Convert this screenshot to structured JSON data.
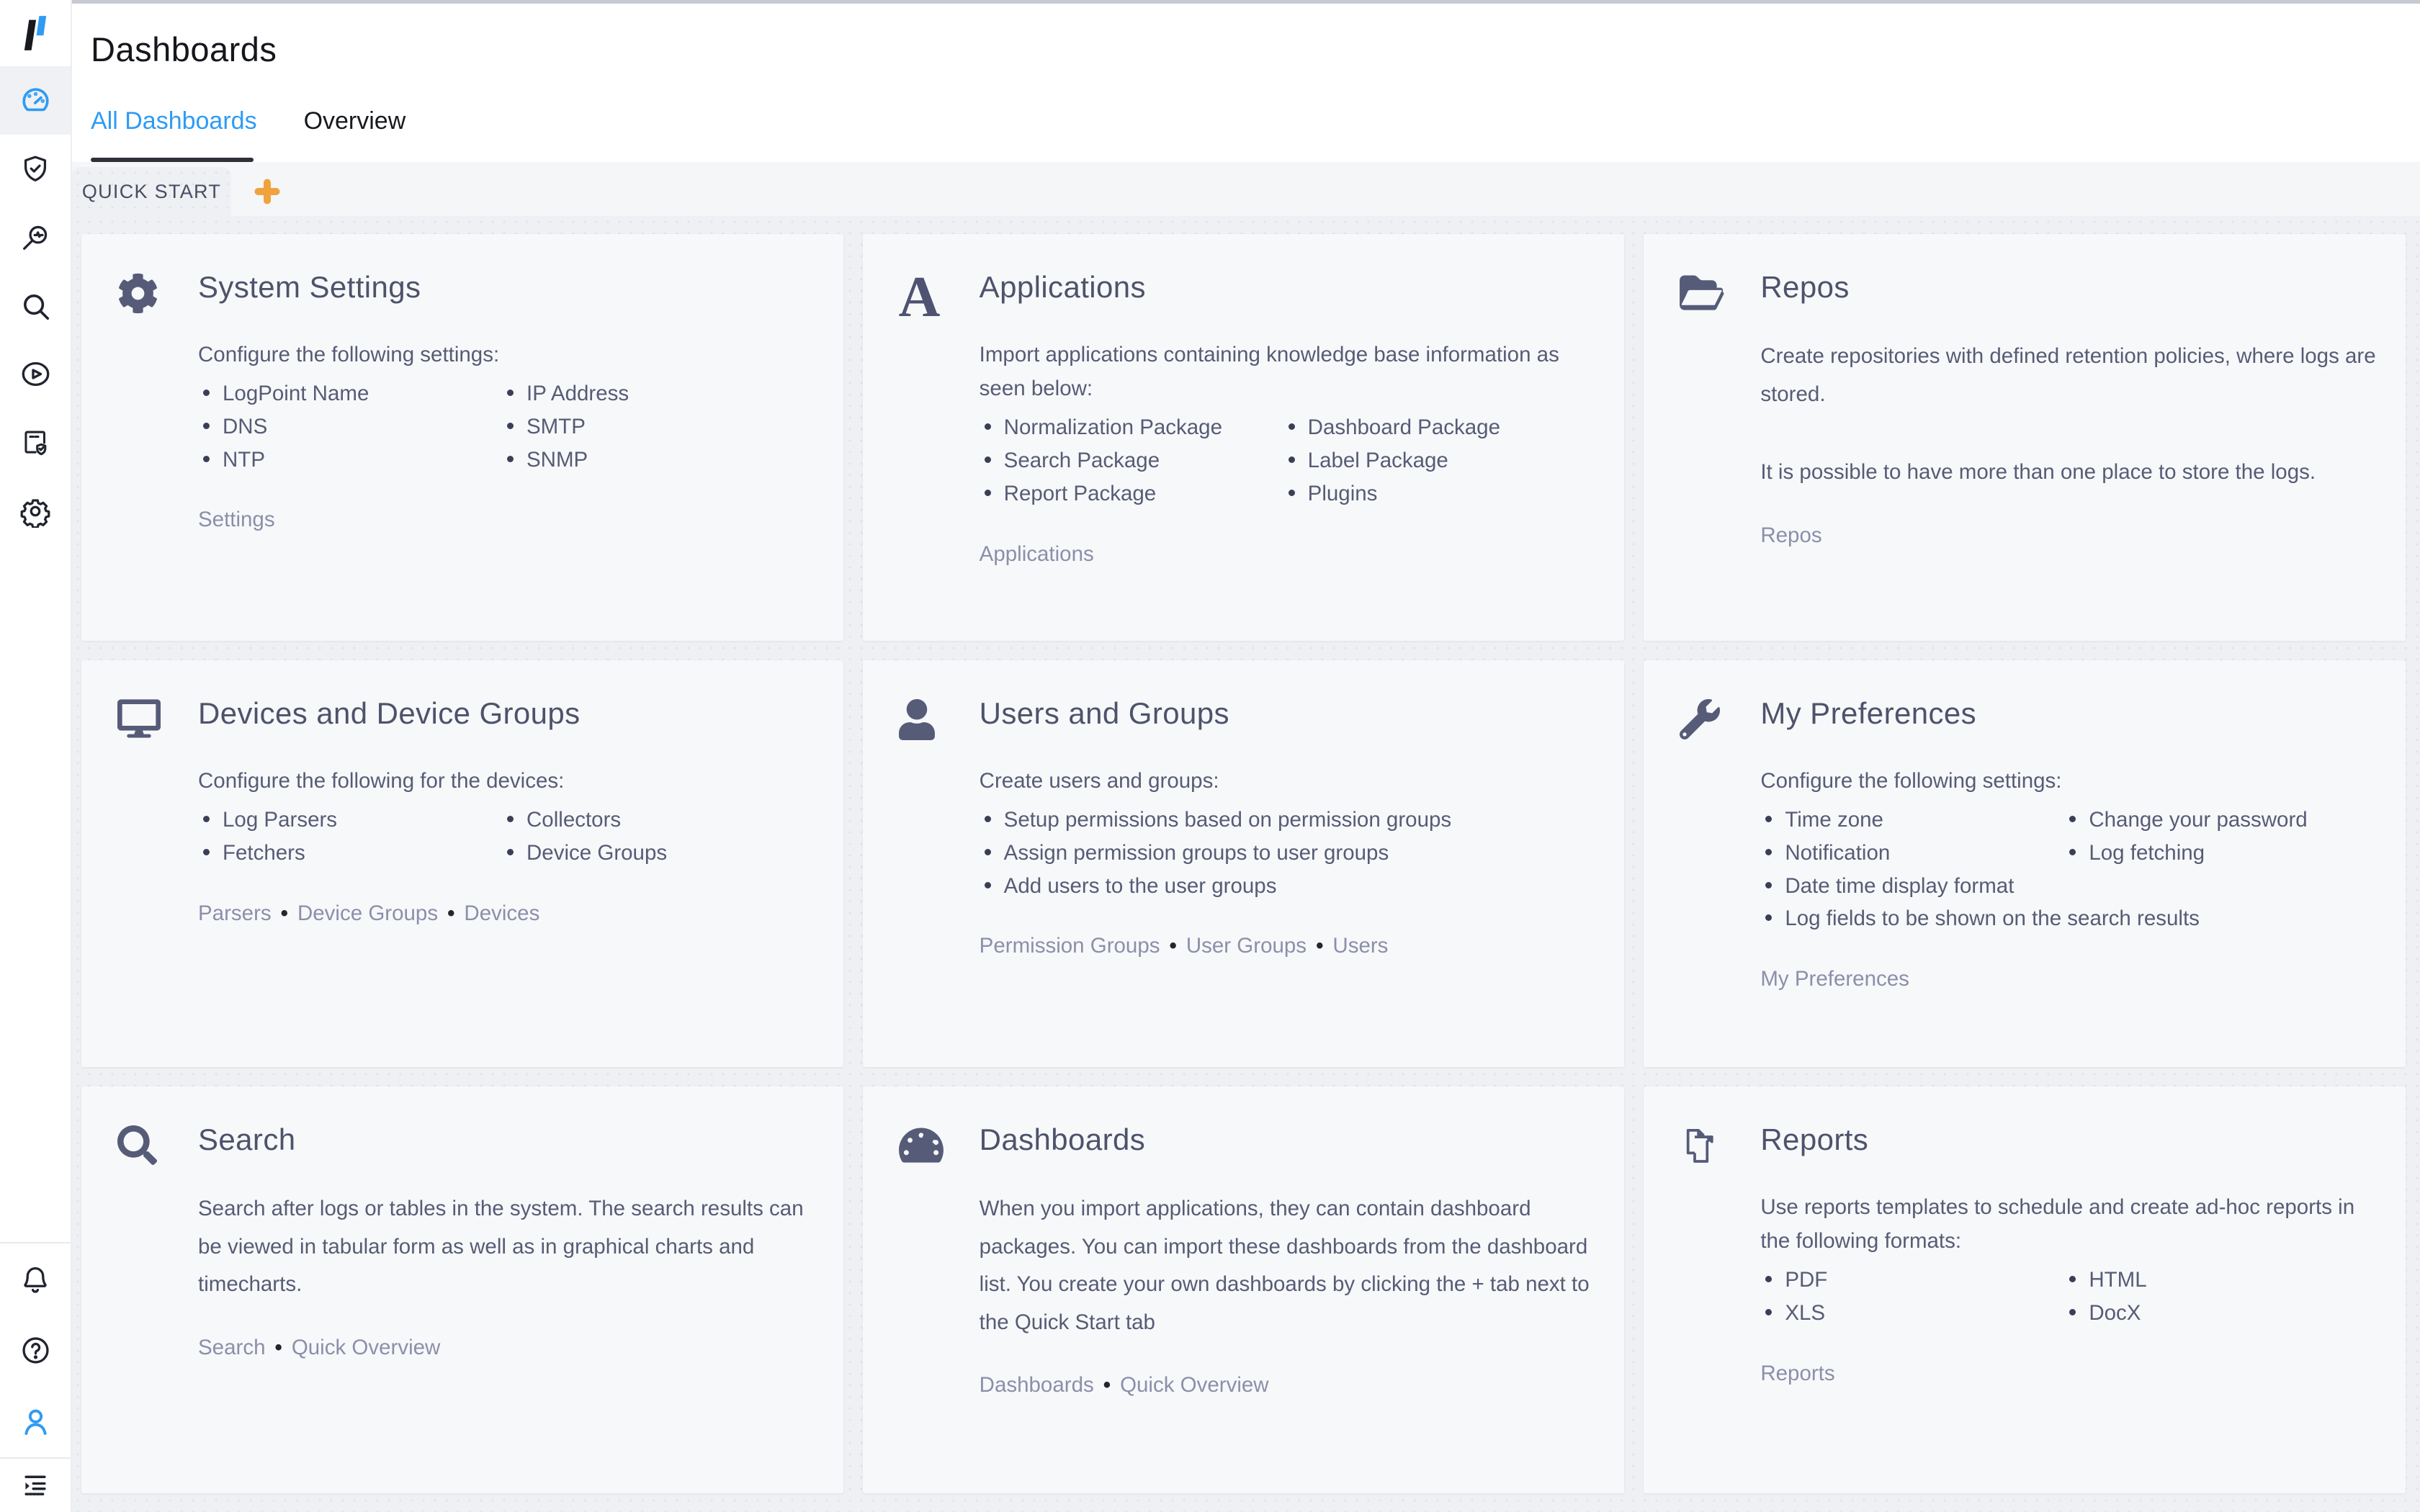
{
  "header": {
    "title": "Dashboards",
    "tabs": [
      {
        "label": "All Dashboards",
        "active": true
      },
      {
        "label": "Overview",
        "active": false
      }
    ]
  },
  "workspace": {
    "active_tab": "QUICK START",
    "add_tab_icon": "plus-icon"
  },
  "sidebar": {
    "top_icons": [
      "dashboard-gauge-icon",
      "shield-check-icon",
      "search-insight-icon",
      "search-icon",
      "play-circle-icon",
      "report-check-icon",
      "gear-outline-icon"
    ],
    "bottom_icons": [
      "bell-icon",
      "help-circle-icon",
      "user-icon",
      "collapse-menu-icon"
    ],
    "active_top_index": 0
  },
  "colors": {
    "accent_blue": "#2f9bf3",
    "plus_orange": "#f0a23c",
    "icon_slate": "#565b78"
  },
  "cards": [
    {
      "icon": "gear-icon",
      "title": "System Settings",
      "intro": "Configure the following settings:",
      "columns": [
        [
          "LogPoint Name",
          "DNS",
          "NTP"
        ],
        [
          "IP Address",
          "SMTP",
          "SNMP"
        ]
      ],
      "links": [
        "Settings"
      ]
    },
    {
      "icon": "letter-a-icon",
      "icon_glyph": "A",
      "title": "Applications",
      "intro": "Import applications containing knowledge base information as seen below:",
      "columns": [
        [
          "Normalization Package",
          "Search Package",
          "Report Package"
        ],
        [
          "Dashboard Package",
          "Label Package",
          "Plugins"
        ]
      ],
      "links": [
        "Applications"
      ]
    },
    {
      "icon": "folder-open-icon",
      "title": "Repos",
      "paragraphs": [
        "Create repositories with defined retention policies, where logs are stored.",
        "It is possible to have more than one place to store the logs."
      ],
      "links": [
        "Repos"
      ]
    },
    {
      "icon": "monitor-icon",
      "title": "Devices and Device Groups",
      "intro": "Configure the following for the devices:",
      "columns": [
        [
          "Log Parsers",
          "Fetchers"
        ],
        [
          "Collectors",
          "Device Groups"
        ]
      ],
      "links": [
        "Parsers",
        "Device Groups",
        "Devices"
      ]
    },
    {
      "icon": "user-solid-icon",
      "title": "Users and Groups",
      "intro": "Create users and groups:",
      "columns": [
        [
          "Setup permissions based on permission groups",
          "Assign permission groups to user groups",
          "Add users to the user groups"
        ]
      ],
      "links": [
        "Permission Groups",
        "User Groups",
        "Users"
      ]
    },
    {
      "icon": "wrench-icon",
      "title": "My Preferences",
      "intro": "Configure the following settings:",
      "columns": [
        [
          "Time zone",
          "Notification",
          "Date time display format",
          "Log fields to be shown on the search results"
        ],
        [
          "Change your password",
          "Log fetching"
        ]
      ],
      "links": [
        "My Preferences"
      ]
    },
    {
      "icon": "magnifier-icon",
      "title": "Search",
      "paragraphs": [
        "Search after logs or tables in the system. The search results can be viewed in tabular form as well as in graphical charts and timecharts."
      ],
      "links": [
        "Search",
        "Quick Overview"
      ]
    },
    {
      "icon": "gauge-icon",
      "title": "Dashboards",
      "paragraphs": [
        "When you import applications, they can contain dashboard packages. You can import these dashboards from the dashboard list. You create your own dashboards by clicking the + tab next to the Quick Start tab"
      ],
      "links": [
        "Dashboards",
        "Quick Overview"
      ]
    },
    {
      "icon": "report-copies-icon",
      "title": "Reports",
      "intro": "Use reports templates to schedule and create ad-hoc reports in the following formats:",
      "columns": [
        [
          "PDF",
          "XLS"
        ],
        [
          "HTML",
          "DocX"
        ]
      ],
      "links": [
        "Reports"
      ]
    }
  ]
}
